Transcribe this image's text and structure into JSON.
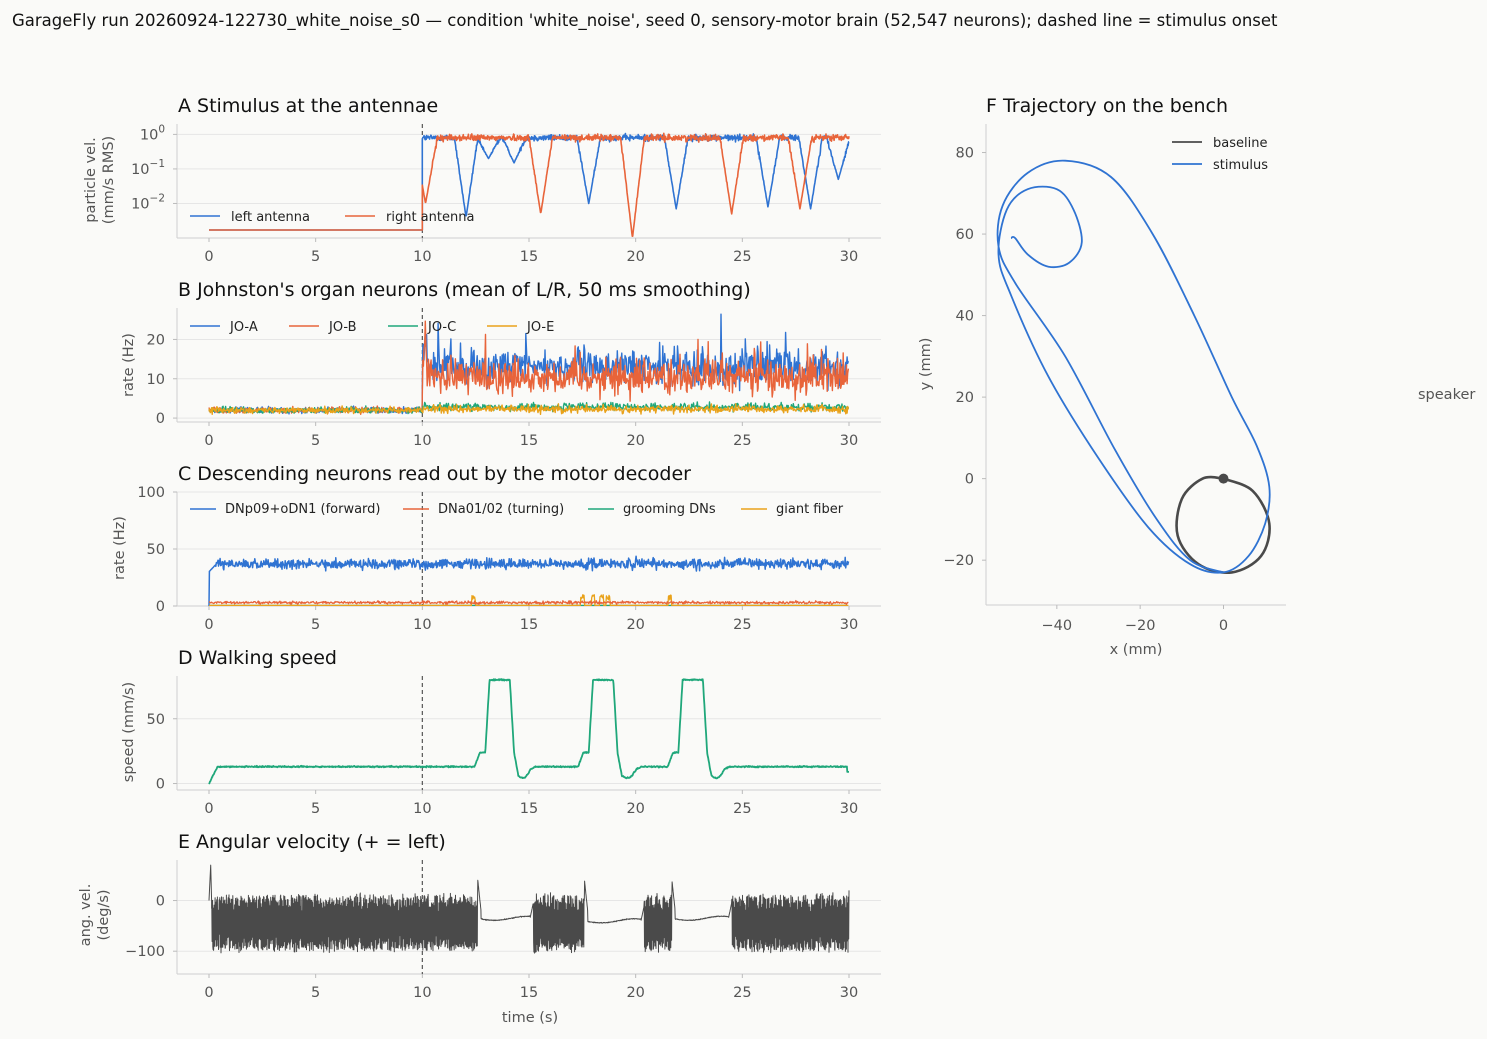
{
  "suptitle": "GarageFly run 20260924-122730_white_noise_s0 — condition 'white_noise', seed 0, sensory-motor brain (52,547 neurons); dashed line = stimulus onset",
  "colors": {
    "blue": "#2f73d2",
    "orange": "#e8643a",
    "green": "#1fa77a",
    "gold": "#e9a21a",
    "dark": "#4a4a4a",
    "onset_line": "#555555"
  },
  "stimulus_onset_s": 10,
  "chart_data": [
    {
      "id": "A",
      "type": "line",
      "title": "A  Stimulus at the antennae",
      "ylabel": [
        "particle vel.",
        "(mm/s RMS)"
      ],
      "xlabel": "",
      "yscale": "log",
      "xlim": [
        -1.5,
        31.5
      ],
      "ylim": [
        0.001,
        2
      ],
      "xticks": [
        "0",
        "5",
        "10",
        "15",
        "20",
        "25",
        "30"
      ],
      "yticks": [
        {
          "base": "10",
          "exp": "0",
          "v": 1
        },
        {
          "base": "10",
          "exp": "−1",
          "v": 0.1
        },
        {
          "base": "10",
          "exp": "−2",
          "v": 0.01
        }
      ],
      "legend": "bottom-left",
      "grid": true,
      "series": [
        {
          "name": "left antenna",
          "color": "#2f73d2",
          "baseline": 0.0017,
          "level": 0.8,
          "dips": [
            [
              12.05,
              0.004
            ],
            [
              13.1,
              0.2
            ],
            [
              14.3,
              0.15
            ],
            [
              17.8,
              0.01
            ],
            [
              21.9,
              0.007
            ],
            [
              26.2,
              0.008
            ],
            [
              28.2,
              0.007
            ],
            [
              29.5,
              0.05
            ]
          ]
        },
        {
          "name": "right antenna",
          "color": "#e8643a",
          "baseline": 0.0017,
          "level": 0.8,
          "dips": [
            [
              10.15,
              0.01
            ],
            [
              15.55,
              0.005
            ],
            [
              19.85,
              0.001
            ],
            [
              24.5,
              0.005
            ],
            [
              27.7,
              0.007
            ]
          ]
        }
      ]
    },
    {
      "id": "B",
      "type": "line",
      "title": "B  Johnston's organ neurons (mean of L/R, 50 ms smoothing)",
      "ylabel": [
        "rate (Hz)"
      ],
      "xlabel": "",
      "xlim": [
        -1.5,
        31.5
      ],
      "ylim": [
        -1,
        28
      ],
      "xticks": [
        "0",
        "5",
        "10",
        "15",
        "20",
        "25",
        "30"
      ],
      "yticks": [
        "0",
        "10",
        "20"
      ],
      "legend": "top-left",
      "grid": true,
      "series": [
        {
          "name": "JO-A",
          "color": "#2f73d2",
          "pre": 2.0,
          "post": 13.0
        },
        {
          "name": "JO-B",
          "color": "#e8643a",
          "pre": 2.0,
          "post": 10.5
        },
        {
          "name": "JO-C",
          "color": "#1fa77a",
          "pre": 2.0,
          "post": 2.8
        },
        {
          "name": "JO-E",
          "color": "#e9a21a",
          "pre": 2.0,
          "post": 2.3
        }
      ]
    },
    {
      "id": "C",
      "type": "line",
      "title": "C  Descending neurons read out by the motor decoder",
      "ylabel": [
        "rate (Hz)"
      ],
      "xlabel": "",
      "xlim": [
        -1.5,
        31.5
      ],
      "ylim": [
        0,
        100
      ],
      "xticks": [
        "0",
        "5",
        "10",
        "15",
        "20",
        "25",
        "30"
      ],
      "yticks": [
        "0",
        "50",
        "100"
      ],
      "legend": "top, 4 columns",
      "grid": true,
      "series": [
        {
          "name": "DNp09+oDN1 (forward)",
          "color": "#2f73d2",
          "level": 37
        },
        {
          "name": "DNa01/02 (turning)",
          "color": "#e8643a",
          "level": 3
        },
        {
          "name": "grooming DNs",
          "color": "#1fa77a",
          "level": 0.5
        },
        {
          "name": "giant fiber",
          "color": "#e9a21a",
          "level": 0.5,
          "bursts": [
            12.4,
            17.5,
            18.0,
            18.4,
            18.7,
            21.6
          ]
        }
      ]
    },
    {
      "id": "D",
      "type": "line",
      "title": "D  Walking speed",
      "ylabel": [
        "speed (mm/s)"
      ],
      "xlabel": "",
      "xlim": [
        -1.5,
        31.5
      ],
      "ylim": [
        -5,
        83
      ],
      "xticks": [
        "0",
        "5",
        "10",
        "15",
        "20",
        "25",
        "30"
      ],
      "yticks": [
        "0",
        "50"
      ],
      "grid": true,
      "series": [
        {
          "name": "",
          "color": "#1fa77a",
          "baseline": 13,
          "bursts": [
            [
              12.45,
              15.3
            ],
            [
              17.3,
              20.3
            ],
            [
              21.5,
              24.4
            ]
          ],
          "peak": 80
        }
      ]
    },
    {
      "id": "E",
      "type": "line",
      "title": "E  Angular velocity (+ = left)",
      "ylabel": [
        "ang. vel.",
        "(deg/s)"
      ],
      "xlabel": "time (s)",
      "xlim": [
        -1.5,
        31.5
      ],
      "ylim": [
        -145,
        80
      ],
      "xticks": [
        "0",
        "5",
        "10",
        "15",
        "20",
        "25",
        "30"
      ],
      "yticks": [
        "0",
        "−100"
      ],
      "grid": true,
      "series": [
        {
          "name": "",
          "color": "#4a4a4a",
          "mean": -45,
          "amplitude": 55,
          "quiet": [
            [
              12.6,
              15.2,
              -35
            ],
            [
              17.6,
              20.4,
              -40
            ],
            [
              21.7,
              24.5,
              -35
            ]
          ]
        }
      ]
    },
    {
      "id": "F",
      "type": "line",
      "title": "F  Trajectory on the bench",
      "ylabel": [
        "y (mm)"
      ],
      "xlabel": "x (mm)",
      "xlim": [
        -57,
        15
      ],
      "ylim": [
        -31,
        87
      ],
      "xticks": [
        "−40",
        "−20",
        "0"
      ],
      "yticks": [
        "−20",
        "0",
        "20",
        "40",
        "60",
        "80"
      ],
      "legend": "top-right",
      "annotation": "speaker",
      "series": [
        {
          "name": "baseline",
          "color": "#4a4a4a",
          "path": [
            [
              0,
              0
            ],
            [
              7,
              -3
            ],
            [
              11,
              -11
            ],
            [
              9,
              -19
            ],
            [
              2,
              -23
            ],
            [
              -6,
              -21
            ],
            [
              -11,
              -14
            ],
            [
              -10,
              -5
            ],
            [
              -5,
              0
            ],
            [
              0,
              0
            ]
          ]
        },
        {
          "name": "stimulus",
          "color": "#2f73d2",
          "path": [
            [
              0,
              -23
            ],
            [
              -8,
              -20
            ],
            [
              -16,
              -10
            ],
            [
              -26,
              7
            ],
            [
              -38,
              30
            ],
            [
              -50,
              48
            ],
            [
              -54,
              57
            ],
            [
              -53,
              67
            ],
            [
              -47,
              75
            ],
            [
              -38,
              78
            ],
            [
              -27,
              74
            ],
            [
              -17,
              60
            ],
            [
              -7,
              40
            ],
            [
              2,
              20
            ],
            [
              8,
              8
            ],
            [
              11,
              -2
            ],
            [
              10,
              -11
            ],
            [
              6,
              -19
            ],
            [
              0,
              -23
            ],
            [
              -8,
              -21
            ],
            [
              -18,
              -12
            ],
            [
              -30,
              5
            ],
            [
              -42,
              25
            ],
            [
              -51,
              45
            ],
            [
              -54,
              55
            ],
            [
              -52,
              66
            ],
            [
              -47,
              71
            ],
            [
              -40,
              71
            ],
            [
              -36,
              66
            ],
            [
              -34,
              58
            ],
            [
              -37,
              53
            ],
            [
              -42,
              52
            ],
            [
              -47,
              55
            ],
            [
              -50,
              59
            ],
            [
              -51,
              59
            ]
          ]
        },
        {
          "name": "",
          "color": "#4a4a4a",
          "path": [
            [
              0,
              0
            ]
          ],
          "marker": "dot"
        }
      ]
    }
  ]
}
